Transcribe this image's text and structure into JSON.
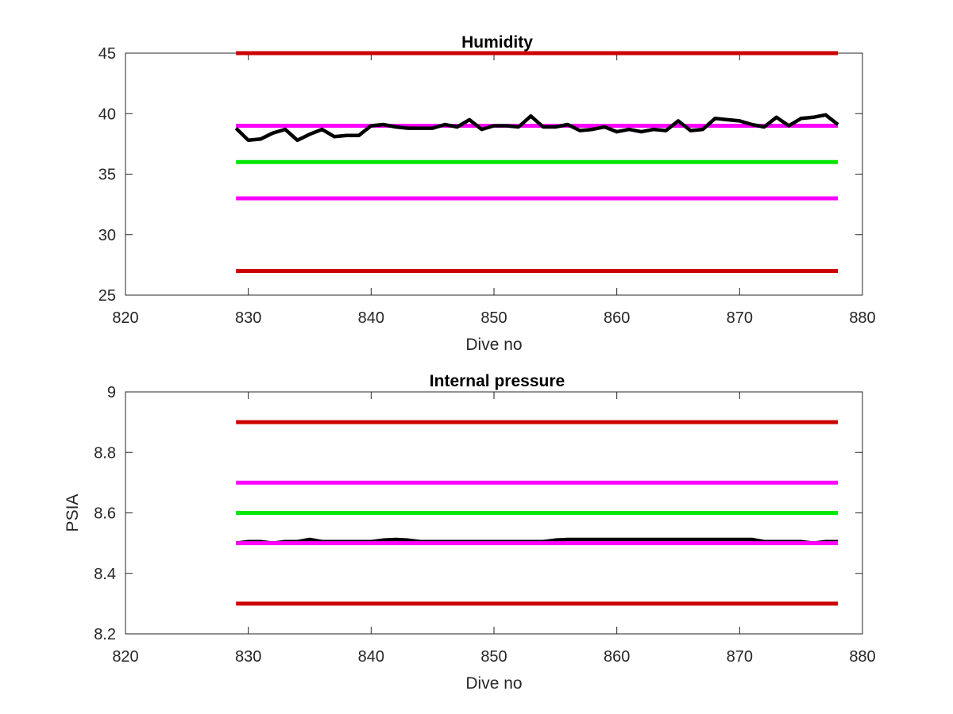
{
  "chart_data": [
    {
      "type": "line",
      "title": "Humidity",
      "xlabel": "Dive no",
      "ylabel": "",
      "xlim": [
        820,
        880
      ],
      "ylim": [
        25,
        45
      ],
      "xticks": [
        "820",
        "830",
        "840",
        "850",
        "860",
        "870",
        "880"
      ],
      "yticks": [
        "25",
        "30",
        "35",
        "40",
        "45"
      ],
      "grid": false,
      "series": [
        {
          "color": "#cc0000",
          "x": [
            829,
            878
          ],
          "values": [
            45,
            45
          ]
        },
        {
          "color": "#ff00ff",
          "x": [
            829,
            878
          ],
          "values": [
            39,
            39
          ]
        },
        {
          "color": "#00e600",
          "x": [
            829,
            878
          ],
          "values": [
            36,
            36
          ]
        },
        {
          "color": "#ff00ff",
          "x": [
            829,
            878
          ],
          "values": [
            33,
            33
          ]
        },
        {
          "color": "#cc0000",
          "x": [
            829,
            878
          ],
          "values": [
            27,
            27
          ]
        },
        {
          "color": "#000000",
          "x": [
            829,
            830,
            831,
            832,
            833,
            834,
            835,
            836,
            837,
            838,
            839,
            840,
            841,
            842,
            843,
            844,
            845,
            846,
            847,
            848,
            849,
            850,
            851,
            852,
            853,
            854,
            855,
            856,
            857,
            858,
            859,
            860,
            861,
            862,
            863,
            864,
            865,
            866,
            867,
            868,
            869,
            870,
            871,
            872,
            873,
            874,
            875,
            876,
            877,
            878
          ],
          "values": [
            38.8,
            37.8,
            37.9,
            38.4,
            38.7,
            37.8,
            38.3,
            38.7,
            38.1,
            38.2,
            38.2,
            39.0,
            39.1,
            38.9,
            38.8,
            38.8,
            38.8,
            39.1,
            38.9,
            39.5,
            38.7,
            39.0,
            39.0,
            38.9,
            39.8,
            38.9,
            38.9,
            39.1,
            38.6,
            38.7,
            38.9,
            38.5,
            38.7,
            38.5,
            38.7,
            38.6,
            39.4,
            38.6,
            38.7,
            39.6,
            39.5,
            39.4,
            39.1,
            38.9,
            39.7,
            39.0,
            39.6,
            39.7,
            39.9,
            39.1
          ]
        }
      ]
    },
    {
      "type": "line",
      "title": "Internal pressure",
      "xlabel": "Dive no",
      "ylabel": "PSIA",
      "xlim": [
        820,
        880
      ],
      "ylim": [
        8.2,
        9.0
      ],
      "xticks": [
        "820",
        "830",
        "840",
        "850",
        "860",
        "870",
        "880"
      ],
      "yticks": [
        "8.2",
        "8.4",
        "8.6",
        "8.8",
        "9"
      ],
      "grid": false,
      "series": [
        {
          "color": "#cc0000",
          "x": [
            829,
            878
          ],
          "values": [
            8.9,
            8.9
          ]
        },
        {
          "color": "#ff00ff",
          "x": [
            829,
            878
          ],
          "values": [
            8.7,
            8.7
          ]
        },
        {
          "color": "#00e600",
          "x": [
            829,
            878
          ],
          "values": [
            8.6,
            8.6
          ]
        },
        {
          "color": "#cc0000",
          "x": [
            829,
            878
          ],
          "values": [
            8.3,
            8.3
          ]
        },
        {
          "color": "#000000",
          "x": [
            829,
            830,
            831,
            832,
            833,
            834,
            835,
            836,
            837,
            838,
            839,
            840,
            841,
            842,
            843,
            844,
            845,
            846,
            847,
            848,
            849,
            850,
            851,
            852,
            853,
            854,
            855,
            856,
            857,
            858,
            859,
            860,
            861,
            862,
            863,
            864,
            865,
            866,
            867,
            868,
            869,
            870,
            871,
            872,
            873,
            874,
            875,
            876,
            877,
            878
          ],
          "values": [
            8.5,
            8.505,
            8.505,
            8.5,
            8.505,
            8.505,
            8.512,
            8.505,
            8.505,
            8.505,
            8.505,
            8.505,
            8.51,
            8.512,
            8.51,
            8.505,
            8.505,
            8.505,
            8.505,
            8.505,
            8.505,
            8.505,
            8.505,
            8.505,
            8.505,
            8.505,
            8.51,
            8.512,
            8.512,
            8.512,
            8.512,
            8.512,
            8.512,
            8.512,
            8.512,
            8.512,
            8.512,
            8.512,
            8.512,
            8.512,
            8.512,
            8.512,
            8.512,
            8.505,
            8.505,
            8.505,
            8.505,
            8.5,
            8.505,
            8.505
          ]
        },
        {
          "color": "#ff00ff",
          "x": [
            829,
            878
          ],
          "values": [
            8.5,
            8.5
          ]
        }
      ]
    }
  ]
}
